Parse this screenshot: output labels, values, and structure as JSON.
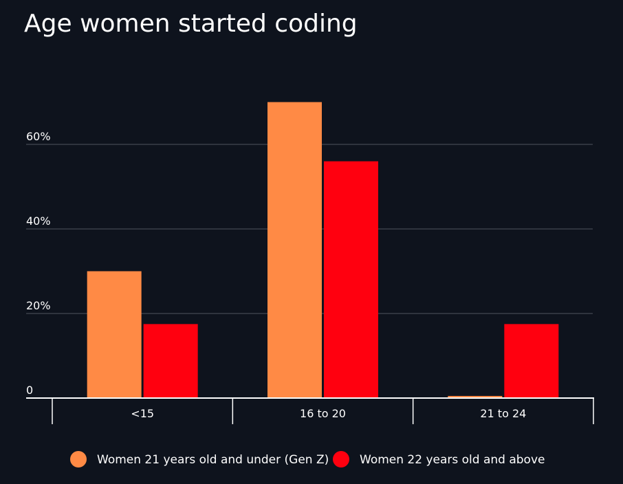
{
  "chart_data": {
    "type": "bar",
    "title": "Age women started coding",
    "categories": [
      "<15",
      "16 to 20",
      "21 to 24"
    ],
    "series": [
      {
        "name": "Women 21 years old and under (Gen Z)",
        "color": "#ff8a45",
        "values": [
          30,
          70,
          0.5
        ]
      },
      {
        "name": "Women 22 years old and above",
        "color": "#ff000f",
        "values": [
          17.5,
          56,
          17.5
        ]
      }
    ],
    "yticks": [
      {
        "value": 0,
        "label": "0"
      },
      {
        "value": 20,
        "label": "20%"
      },
      {
        "value": 40,
        "label": "40%"
      },
      {
        "value": 60,
        "label": "60%"
      }
    ],
    "ylim": [
      0,
      70
    ],
    "grid": true,
    "legend_position": "bottom",
    "colors": {
      "background": "#0e131d",
      "gridline": "#3a3f4a",
      "axis": "#ffffff",
      "text": "#ffffff"
    }
  }
}
